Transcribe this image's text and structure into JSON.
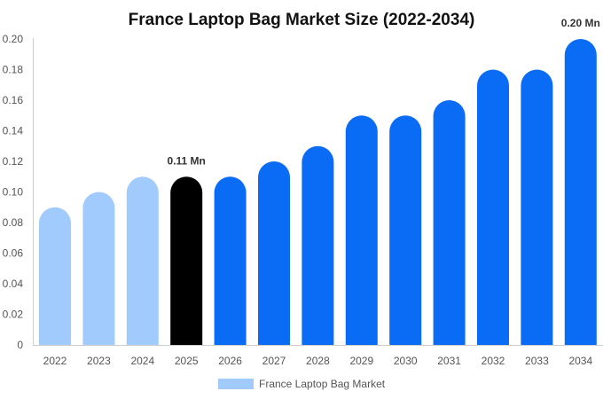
{
  "chart_data": {
    "type": "bar",
    "title": "France Laptop Bag Market Size (2022-2034)",
    "xlabel": "",
    "ylabel": "",
    "categories": [
      "2022",
      "2023",
      "2024",
      "2025",
      "2026",
      "2027",
      "2028",
      "2029",
      "2030",
      "2031",
      "2032",
      "2033",
      "2034"
    ],
    "series": [
      {
        "name": "France Laptop Bag Market",
        "values": [
          0.09,
          0.1,
          0.11,
          0.11,
          0.11,
          0.12,
          0.13,
          0.15,
          0.15,
          0.16,
          0.18,
          0.18,
          0.2
        ]
      }
    ],
    "ylim": [
      0,
      0.2
    ],
    "yticks": [
      "0",
      "0.02",
      "0.04",
      "0.06",
      "0.08",
      "0.10",
      "0.12",
      "0.14",
      "0.16",
      "0.18",
      "0.20"
    ],
    "data_labels": [
      {
        "category": "2025",
        "text": "0.11 Mn"
      },
      {
        "category": "2034",
        "text": "0.20 Mn"
      }
    ],
    "colors": {
      "historical": "#a0cbfc",
      "current": "#000000",
      "forecast": "#0a6cf5",
      "legend": "#a0cbfc",
      "axis": "#cccccc"
    },
    "grid": false,
    "legend": "bottom-center"
  }
}
